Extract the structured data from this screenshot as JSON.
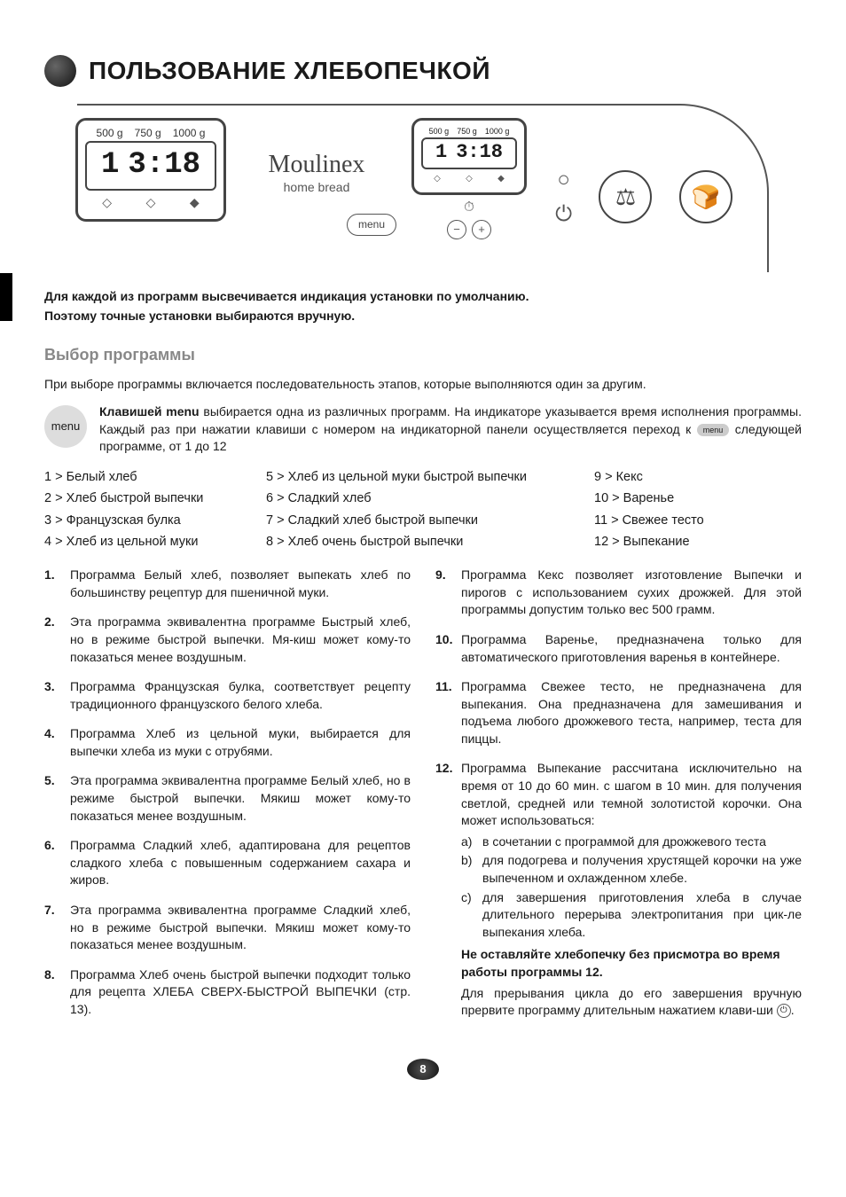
{
  "header": {
    "title": "ПОЛЬЗОВАНИЕ ХЛЕБОПЕЧКОЙ"
  },
  "diagram": {
    "weights_large": [
      "500 g",
      "750 g",
      "1000 g"
    ],
    "weights_small": [
      "500 g",
      "750 g",
      "1000 g"
    ],
    "lcd_prog": "1",
    "lcd_time": "3:18",
    "brand": "Moulinex",
    "brand_sub": "home bread",
    "menu_label": "menu",
    "minus": "−",
    "plus": "+"
  },
  "intro": {
    "line1": "Для каждой из программ высвечивается индикация установки по умолчанию.",
    "line2": "Поэтому точные установки выбираются вручную."
  },
  "section": {
    "heading": "Выбор программы",
    "lead": "При выборе программы включается последовательность этапов, которые выполняются один за другим.",
    "menu_badge": "menu",
    "menu_desc_prefix": "Клавишей menu",
    "menu_desc_body": " выбирается одна из различных программ. На индикаторе указывается время исполнения программы. Каждый раз при нажатии клавиши с номером на индикаторной панели осуществляется переход к ",
    "menu_desc_tail": " следующей программе, от 1 до 12",
    "mini_menu": "menu"
  },
  "programs_table": {
    "col1": [
      "1  >  Белый хлеб",
      "2  >  Хлеб быстрой выпечки",
      "3  >  Французская булка",
      "4  >  Хлеб из цельной муки"
    ],
    "col2": [
      "5  >  Хлеб из цельной муки быстрой выпечки",
      "6  >  Сладкий хлеб",
      "7  >  Сладкий хлеб быстрой выпечки",
      "8  >  Хлеб очень быстрой выпечки"
    ],
    "col3": [
      "9   >  Кекс",
      "10  >  Варенье",
      "11  >  Свежее тесто",
      "12  >  Выпекание"
    ]
  },
  "descriptions_left": [
    {
      "n": "1.",
      "t": "Программа Белый хлеб, позволяет выпекать хлеб по большинству рецептур для пшеничной муки."
    },
    {
      "n": "2.",
      "t": "Эта программа эквивалентна программе Быстрый хлеб, но в режиме быстрой выпечки. Мя-киш может кому-то показаться менее воздушным."
    },
    {
      "n": "3.",
      "t": "Программа Французская булка, соответствует рецепту традиционного французского белого хлеба."
    },
    {
      "n": "4.",
      "t": "Программа Хлеб из цельной муки, выбирается для выпечки хлеба из муки с отрубями."
    },
    {
      "n": "5.",
      "t": "Эта программа эквивалентна программе Белый хлеб, но в режиме быстрой выпечки. Мякиш может кому-то показаться менее воздушным."
    },
    {
      "n": "6.",
      "t": "Программа Сладкий хлеб, адаптирована для рецептов сладкого хлеба с повышенным содержанием сахара и жиров."
    },
    {
      "n": "7.",
      "t": "Эта программа эквивалентна программе Сладкий хлеб, но в режиме быстрой выпечки. Мякиш может кому-то показаться менее воздушным."
    },
    {
      "n": "8.",
      "t": "Программа Хлеб очень быстрой выпечки подходит только для рецепта ХЛЕБА СВЕРХ-БЫСТРОЙ ВЫПЕЧКИ (стр. 13)."
    }
  ],
  "descriptions_right": [
    {
      "n": "9.",
      "t": "Программа Кекс позволяет изготовление Выпечки и пирогов с использованием сухих дрожжей. Для этой программы допустим только вес 500 грамм."
    },
    {
      "n": "10.",
      "t": "Программа Варенье, предназначена только для автоматического приготовления варенья в контейнере."
    },
    {
      "n": "11.",
      "t": "Программа Свежее тесто, не предназначена для выпекания. Она предназначена для замешивания и подъема любого дрожжевого теста, например, теста для пиццы."
    }
  ],
  "desc12": {
    "n": "12.",
    "lead": "Программа Выпекание рассчитана исключительно на время от 10 до 60 мин. с шагом в 10 мин. для получения светлой, средней или темной золотистой корочки. Она может использоваться:",
    "sub": [
      {
        "l": "a)",
        "t": "в сочетании с программой для дрожжевого теста"
      },
      {
        "l": "b)",
        "t": "для подогрева и получения хрустящей корочки на уже выпеченном и охлажденном хлебе."
      },
      {
        "l": "c)",
        "t": "для завершения приготовления хлеба в случае длительного перерыва электропитания при цик-ле выпекания хлеба."
      }
    ],
    "warn": "Не оставляйте хлебопечку без присмотра во время работы программы 12.",
    "tail": "Для прерывания цикла до его завершения вручную прервите программу длительным нажатием клави-ши ",
    "tail2": "."
  },
  "page_number": "8",
  "colors": {
    "heading_grey": "#888888",
    "text": "#1a1a1a",
    "stroke": "#555555"
  }
}
